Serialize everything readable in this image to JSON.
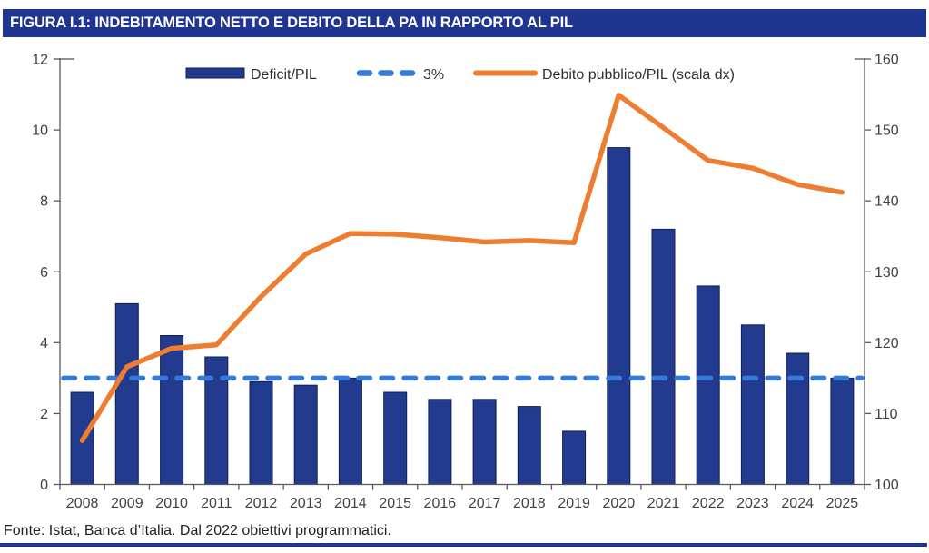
{
  "title": "FIGURA I.1: INDEBITAMENTO NETTO E DEBITO DELLA PA IN RAPPORTO AL PIL",
  "footer": {
    "source": "Fonte: Istat, Banca d’Italia. Dal 2022 obiettivi programmatici."
  },
  "colors": {
    "title_bar_bg": "#1F3590",
    "title_text": "#FFFFFF",
    "bar_fill": "#233B8F",
    "bar_stroke": "#121F4E",
    "threshold_line": "#3579D9",
    "debt_line": "#ED7D31",
    "axis_line": "#595959",
    "axis_text": "#404040",
    "bottom_rule": "#1F3590"
  },
  "chart_data": {
    "type": "bar",
    "subtype": "combo-bar-line-dual-axis",
    "title": "FIGURA I.1: INDEBITAMENTO NETTO E DEBITO DELLA PA IN RAPPORTO AL PIL",
    "categories": [
      "2008",
      "2009",
      "2010",
      "2011",
      "2012",
      "2013",
      "2014",
      "2015",
      "2016",
      "2017",
      "2018",
      "2019",
      "2020",
      "2021",
      "2022",
      "2023",
      "2024",
      "2025"
    ],
    "series": [
      {
        "name": "Deficit/PIL",
        "kind": "bar",
        "axis": "left",
        "color": "#233B8F",
        "values": [
          2.6,
          5.1,
          4.2,
          3.6,
          2.9,
          2.8,
          3.0,
          2.6,
          2.4,
          2.4,
          2.2,
          1.5,
          9.5,
          7.2,
          5.6,
          4.5,
          3.7,
          3.0
        ]
      },
      {
        "name": "3%",
        "kind": "dashed-threshold",
        "axis": "left",
        "color": "#3579D9",
        "value": 3
      },
      {
        "name": "Debito pubblico/PIL (scala dx)",
        "kind": "line",
        "axis": "right",
        "color": "#ED7D31",
        "values": [
          106.2,
          116.6,
          119.2,
          119.7,
          126.5,
          132.5,
          135.4,
          135.3,
          134.8,
          134.2,
          134.4,
          134.1,
          154.9,
          150.3,
          145.7,
          144.6,
          142.3,
          141.2
        ]
      }
    ],
    "left_axis": {
      "min": 0,
      "max": 12,
      "ticks": [
        0,
        2,
        4,
        6,
        8,
        10,
        12
      ]
    },
    "right_axis": {
      "min": 100,
      "max": 160,
      "ticks": [
        100,
        110,
        120,
        130,
        140,
        150,
        160
      ]
    },
    "legend_position": "top-inside",
    "grid": false
  }
}
